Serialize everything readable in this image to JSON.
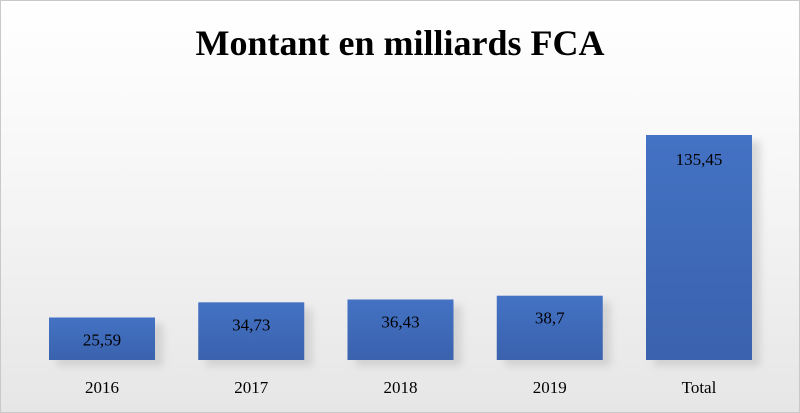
{
  "chart_data": {
    "type": "bar",
    "title": "Montant en milliards FCA",
    "categories": [
      "2016",
      "2017",
      "2018",
      "2019",
      "Total"
    ],
    "values": [
      25.59,
      34.73,
      36.43,
      38.7,
      135.45
    ],
    "value_labels": [
      "25,59",
      "34,73",
      "36,43",
      "38,7",
      "135,45"
    ],
    "xlabel": "",
    "ylabel": "",
    "ylim": [
      0,
      135.45
    ],
    "grid": false,
    "legend": "none",
    "colors": {
      "bar": "#4472c4",
      "bar_dark": "#3a62ad",
      "shadow": "#bdbdbd"
    }
  }
}
